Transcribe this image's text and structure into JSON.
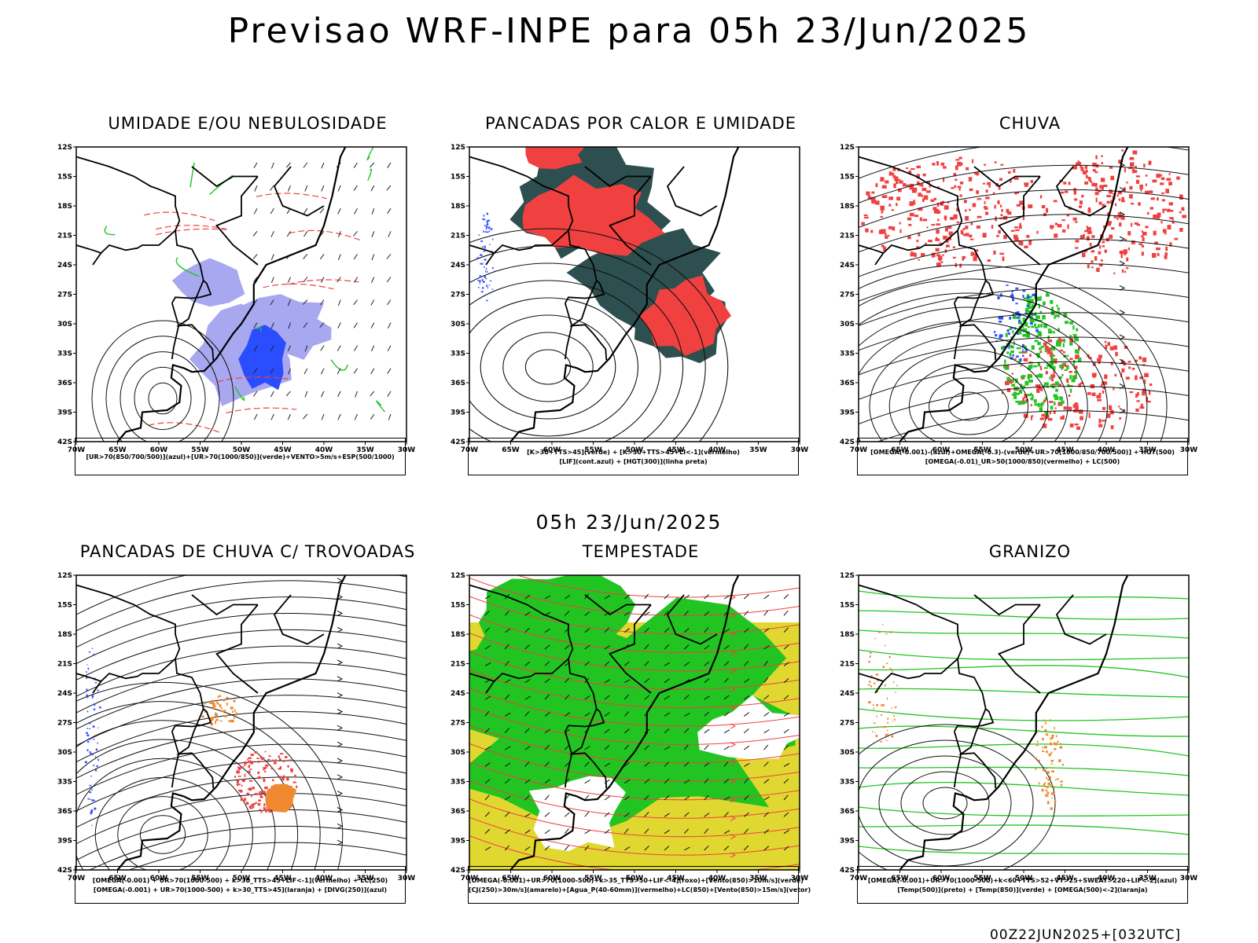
{
  "title": "Previsao WRF-INPE  para 05h 23/Jun/2025",
  "mid_date": "05h 23/Jun/2025",
  "footer": "00Z22JUN2025+[032UTC]",
  "lat_ticks": [
    "12S",
    "15S",
    "18S",
    "21S",
    "24S",
    "27S",
    "30S",
    "33S",
    "36S",
    "39S",
    "42S"
  ],
  "lon_ticks": [
    "70W",
    "65W",
    "60W",
    "55W",
    "50W",
    "45W",
    "40W",
    "35W",
    "30W"
  ],
  "panels": [
    {
      "title": "UMIDADE E/OU NEBULOSIDADE",
      "legend": [
        "[UR>70(850/700/500)](azul)+[UR>70(1000/850)](verde)+VENTO>5m/s+ESP(500/1000)"
      ]
    },
    {
      "title": "PANCADAS POR CALOR E UMIDADE",
      "legend": [
        "[K>30+TTS>45](verde) + [K>30+TTS>45+LI<-1](vermelho)",
        "[LIF](cont.azul) + [HGT(300)](linha preta)"
      ]
    },
    {
      "title": "CHUVA",
      "legend": [
        "[OMEGA(-0.001)-(azul)+OMEGA(-0.3)-(verde)+UR>70(1000/850/700/500)] + HGT(500)",
        "[OMEGA(-0.01)_UR>50(1000/850)(vermelho) + LC(500)"
      ]
    },
    {
      "title": "PANCADAS DE CHUVA C/ TROVOADAS",
      "legend": [
        "[OMEGA(-0.001) + UR>70(1000-500) + k>30_TTS>45+LIF<-1](vermelho) + LC(250)",
        "[OMEGA(-0.001) + UR>70(1000-500) + k>30_TTS>45](laranja) + [DIVG(250)](azul)"
      ]
    },
    {
      "title": "TEMPESTADE",
      "legend": [
        "[OMEGA(-0.001)+UR>70(1000-500)+k>35_TTS>50+LIF<-4](roxo)+[Vento(850)>10m/s](verde)",
        "[CJ(250)>30m/s](amarelo)+[Agua_P(40-60mm)](vermelho)+LC(850)+[Vento(850)>15m/s](vetor)"
      ]
    },
    {
      "title": "GRANIZO",
      "legend": [
        "[OMEGA(-0.001)+UR>70(1000-500)+k<60+TTS>52+VT>25+SWEAT>220+LIF<-2](azul)",
        "[Temp(500)](preto) + [Temp(850)](verde) + [OMEGA(500)<-2](laranja)"
      ]
    }
  ],
  "colors": {
    "red": "#f04040",
    "green": "#22c422",
    "blue": "#2a4dff",
    "darkteal": "#2e4f4f",
    "yellow": "#e0d830",
    "orange": "#f08a30",
    "lavender": "#a8a8f0"
  }
}
